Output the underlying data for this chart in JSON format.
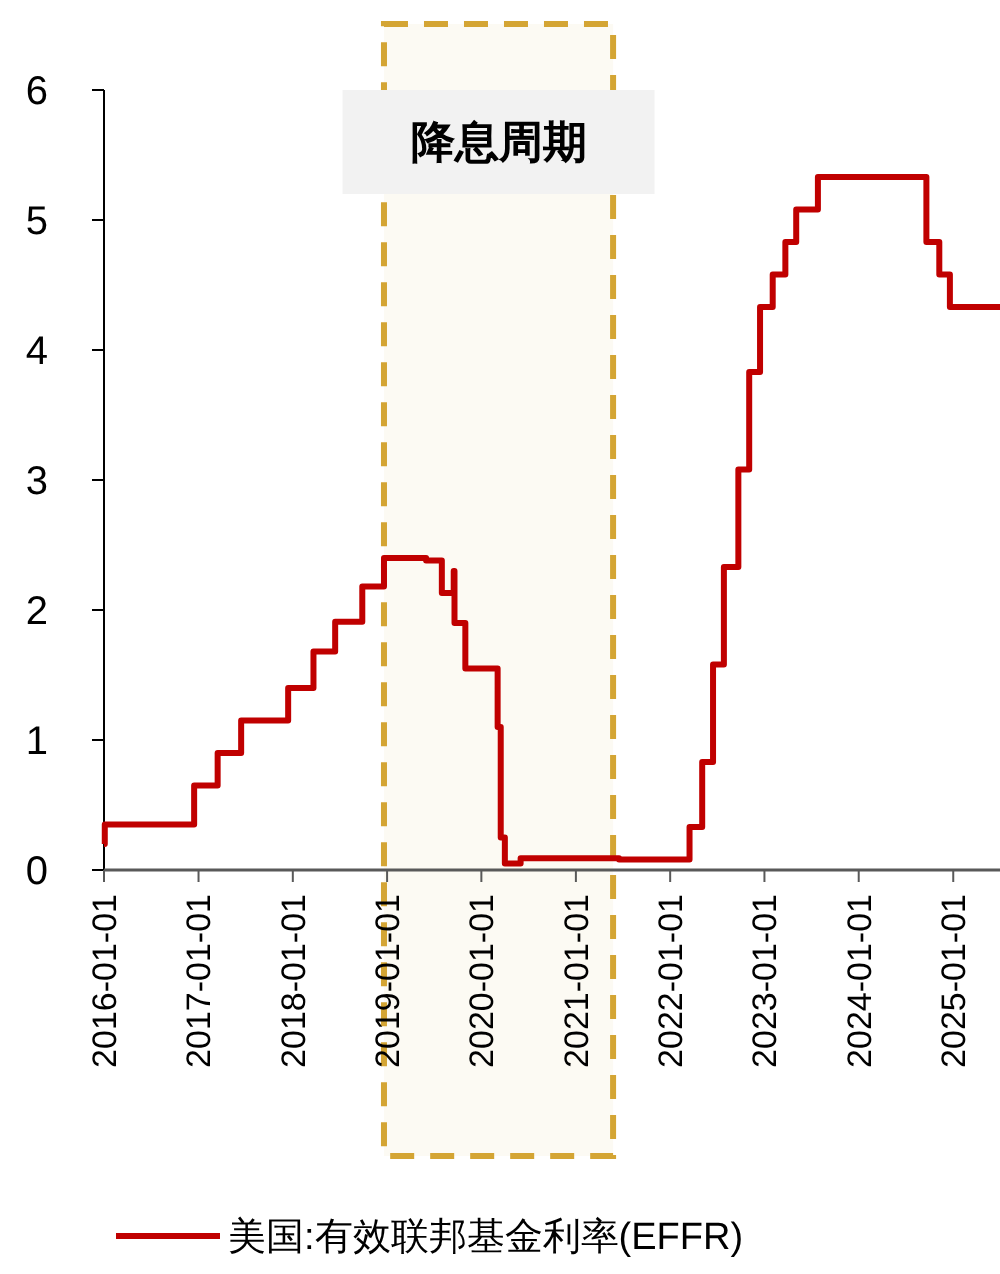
{
  "chart_data": {
    "type": "step",
    "x": [
      "2016-01-01",
      "2016-01-04",
      "2016-12-15",
      "2017-03-16",
      "2017-06-15",
      "2017-12-14",
      "2018-03-22",
      "2018-06-14",
      "2018-09-27",
      "2018-12-20",
      "2019-06-01",
      "2019-08-01",
      "2019-09-16",
      "2019-09-19",
      "2019-10-31",
      "2020-03-04",
      "2020-03-16",
      "2020-04-01",
      "2020-06-01",
      "2021-01-01",
      "2021-06-17",
      "2022-03-17",
      "2022-05-05",
      "2022-06-16",
      "2022-07-28",
      "2022-09-22",
      "2022-11-03",
      "2022-12-15",
      "2023-02-02",
      "2023-03-23",
      "2023-05-04",
      "2023-07-27",
      "2024-09-19",
      "2024-11-08",
      "2024-12-19",
      "2025-07-01"
    ],
    "series": [
      {
        "name": "美国:有效联邦基金利率(EFFR)",
        "color": "#c00000",
        "values": [
          0.2,
          0.35,
          0.65,
          0.9,
          1.15,
          1.4,
          1.68,
          1.91,
          2.18,
          2.4,
          2.38,
          2.13,
          2.3,
          1.9,
          1.55,
          1.1,
          0.25,
          0.05,
          0.09,
          0.09,
          0.08,
          0.33,
          0.83,
          1.58,
          2.33,
          3.08,
          3.83,
          4.33,
          4.58,
          4.83,
          5.08,
          5.33,
          4.83,
          4.58,
          4.33,
          4.33
        ]
      }
    ],
    "xlim": [
      "2016-01-01",
      "2025-07-01"
    ],
    "xticks": [
      "2016-01-01",
      "2017-01-01",
      "2018-01-01",
      "2019-01-01",
      "2020-01-01",
      "2021-01-01",
      "2022-01-01",
      "2023-01-01",
      "2024-01-01",
      "2025-01-01"
    ],
    "ylim": [
      0,
      6
    ],
    "yticks": [
      0,
      1,
      2,
      3,
      4,
      5,
      6
    ],
    "bands": [
      {
        "axis": "x",
        "from": "2018-12-20",
        "to": "2021-05-25",
        "label": "降息周期",
        "color": "#d4a534"
      }
    ],
    "legend": "bottom",
    "grid": false
  }
}
